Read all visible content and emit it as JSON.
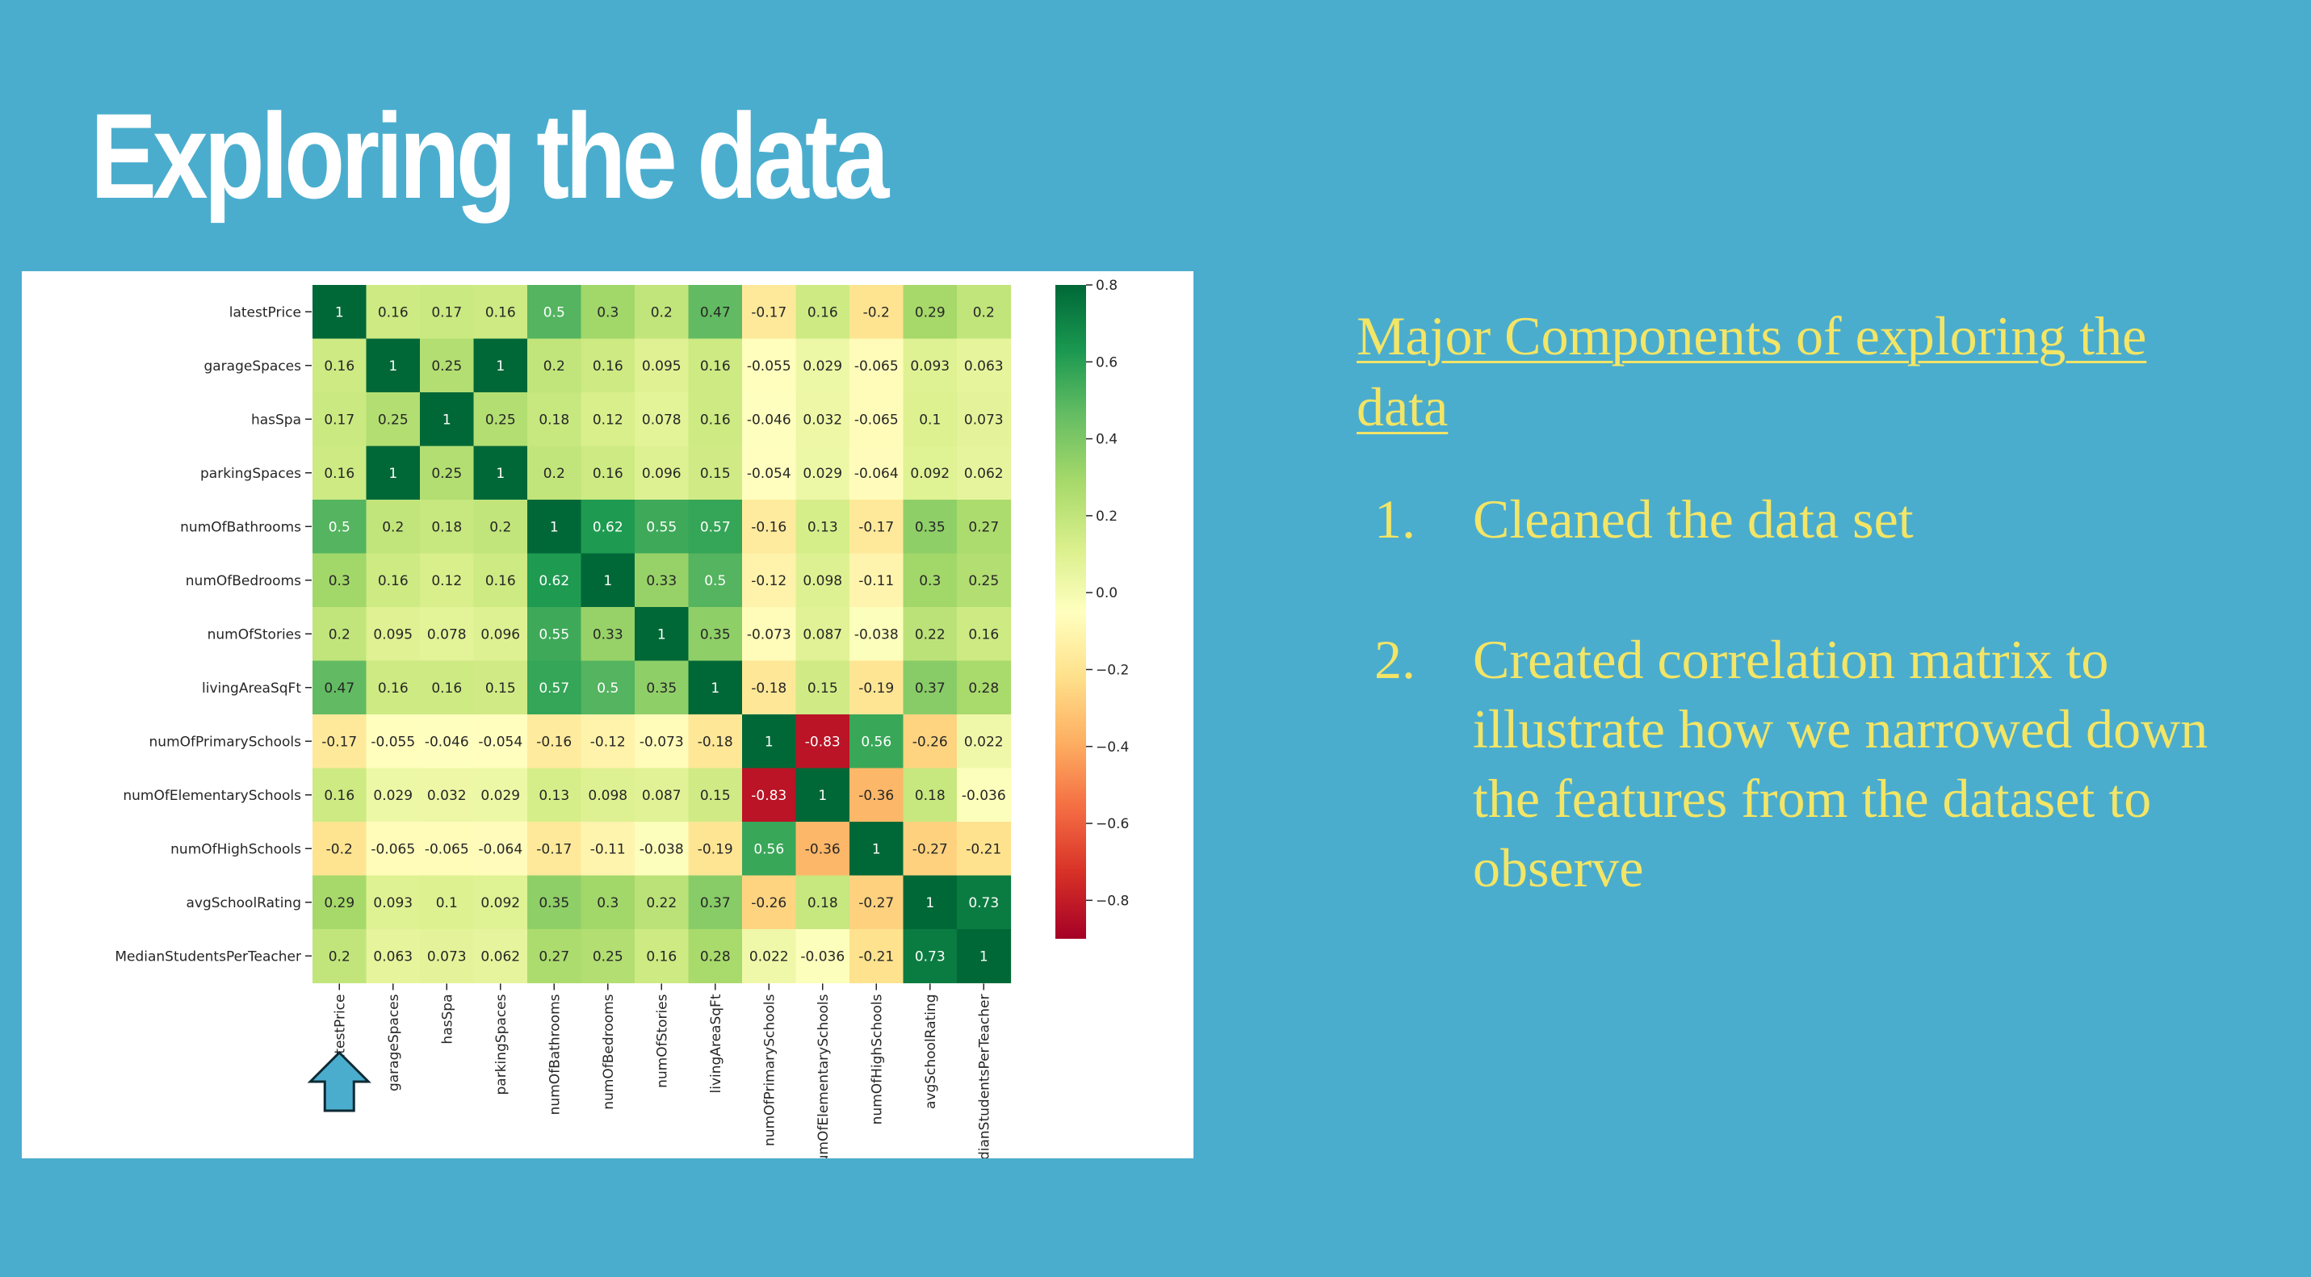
{
  "slide": {
    "title": "Exploring the data",
    "heading": "Major Components of exploring the data",
    "steps": [
      {
        "num": "1.",
        "text": "Cleaned the data set"
      },
      {
        "num": "2.",
        "text": "Created correlation matrix to illustrate how we narrowed down the features from the dataset to observe"
      }
    ]
  },
  "colors": {
    "background": "#4badce",
    "text_accent": "#f3e566",
    "arrow_fill": "#4badce"
  },
  "icons": {
    "pointer": "up-arrow-icon"
  },
  "chart_data": {
    "type": "heatmap",
    "colormap": "RdYlGn",
    "variables": [
      "latestPrice",
      "garageSpaces",
      "hasSpa",
      "parkingSpaces",
      "numOfBathrooms",
      "numOfBedrooms",
      "numOfStories",
      "livingAreaSqFt",
      "numOfPrimarySchools",
      "numOfElementarySchools",
      "numOfHighSchools",
      "avgSchoolRating",
      "MedianStudentsPerTeacher"
    ],
    "values": [
      [
        "1",
        "0.16",
        "0.17",
        "0.16",
        "0.5",
        "0.3",
        "0.2",
        "0.47",
        "-0.17",
        "0.16",
        "-0.2",
        "0.29",
        "0.2"
      ],
      [
        "0.16",
        "1",
        "0.25",
        "1",
        "0.2",
        "0.16",
        "0.095",
        "0.16",
        "-0.055",
        "0.029",
        "-0.065",
        "0.093",
        "0.063"
      ],
      [
        "0.17",
        "0.25",
        "1",
        "0.25",
        "0.18",
        "0.12",
        "0.078",
        "0.16",
        "-0.046",
        "0.032",
        "-0.065",
        "0.1",
        "0.073"
      ],
      [
        "0.16",
        "1",
        "0.25",
        "1",
        "0.2",
        "0.16",
        "0.096",
        "0.15",
        "-0.054",
        "0.029",
        "-0.064",
        "0.092",
        "0.062"
      ],
      [
        "0.5",
        "0.2",
        "0.18",
        "0.2",
        "1",
        "0.62",
        "0.55",
        "0.57",
        "-0.16",
        "0.13",
        "-0.17",
        "0.35",
        "0.27"
      ],
      [
        "0.3",
        "0.16",
        "0.12",
        "0.16",
        "0.62",
        "1",
        "0.33",
        "0.5",
        "-0.12",
        "0.098",
        "-0.11",
        "0.3",
        "0.25"
      ],
      [
        "0.2",
        "0.095",
        "0.078",
        "0.096",
        "0.55",
        "0.33",
        "1",
        "0.35",
        "-0.073",
        "0.087",
        "-0.038",
        "0.22",
        "0.16"
      ],
      [
        "0.47",
        "0.16",
        "0.16",
        "0.15",
        "0.57",
        "0.5",
        "0.35",
        "1",
        "-0.18",
        "0.15",
        "-0.19",
        "0.37",
        "0.28"
      ],
      [
        "-0.17",
        "-0.055",
        "-0.046",
        "-0.054",
        "-0.16",
        "-0.12",
        "-0.073",
        "-0.18",
        "1",
        "-0.83",
        "0.56",
        "-0.26",
        "0.022"
      ],
      [
        "0.16",
        "0.029",
        "0.032",
        "0.029",
        "0.13",
        "0.098",
        "0.087",
        "0.15",
        "-0.83",
        "1",
        "-0.36",
        "0.18",
        "-0.036"
      ],
      [
        "-0.2",
        "-0.065",
        "-0.065",
        "-0.064",
        "-0.17",
        "-0.11",
        "-0.038",
        "-0.19",
        "0.56",
        "-0.36",
        "1",
        "-0.27",
        "-0.21"
      ],
      [
        "0.29",
        "0.093",
        "0.1",
        "0.092",
        "0.35",
        "0.3",
        "0.22",
        "0.37",
        "-0.26",
        "0.18",
        "-0.27",
        "1",
        "0.73"
      ],
      [
        "0.2",
        "0.063",
        "0.073",
        "0.062",
        "0.27",
        "0.25",
        "0.16",
        "0.28",
        "0.022",
        "-0.036",
        "-0.21",
        "0.73",
        "1"
      ]
    ],
    "colorbar": {
      "range": [
        -0.9,
        0.8
      ],
      "ticks": [
        0.8,
        0.6,
        0.4,
        0.2,
        0.0,
        -0.2,
        -0.4,
        -0.6,
        -0.8
      ],
      "tick_labels": [
        "0.8",
        "0.6",
        "0.4",
        "0.2",
        "0.0",
        "−0.2",
        "−0.4",
        "−0.6",
        "−0.8"
      ]
    }
  }
}
